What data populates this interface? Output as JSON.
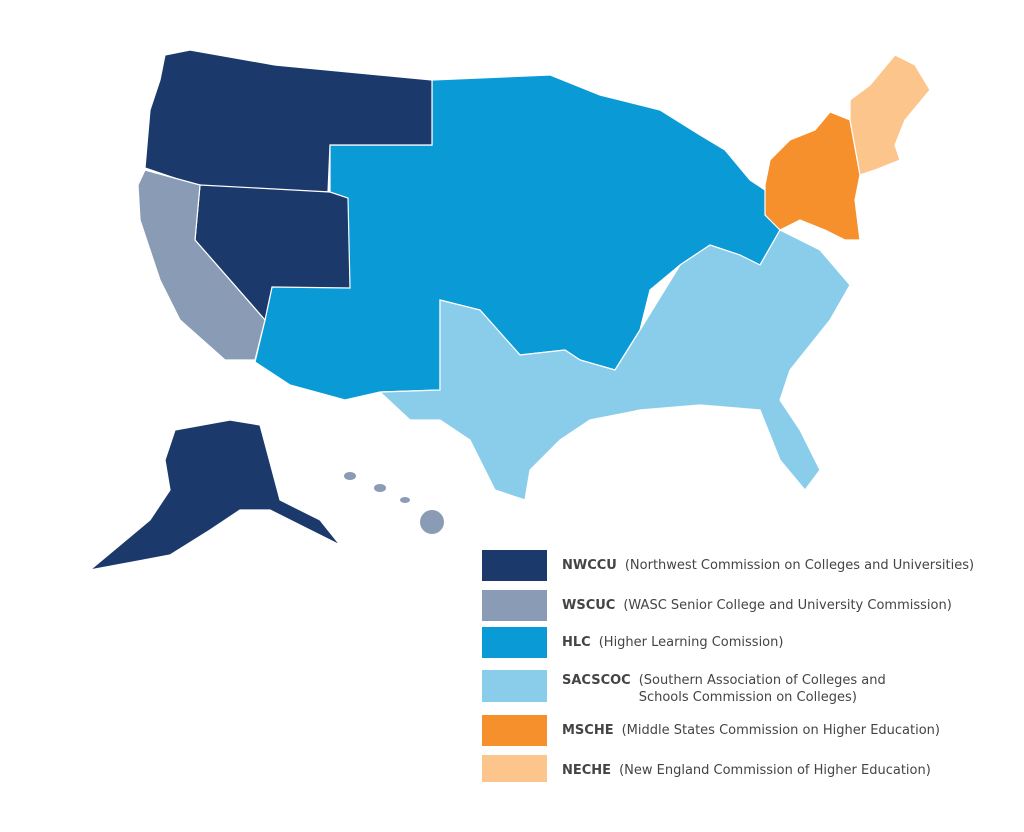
{
  "legend": [
    {
      "abbr": "NWCCU",
      "lines": [
        "(Northwest Commission on Colleges and Universities)"
      ],
      "color": "#1b3a6b"
    },
    {
      "abbr": "WSCUC",
      "lines": [
        "(WASC Senior College and University Commission)"
      ],
      "color": "#8a9cb5"
    },
    {
      "abbr": "HLC",
      "lines": [
        "(Higher Learning Comission)"
      ],
      "color": "#0a9ad6"
    },
    {
      "abbr": "SACSCOC",
      "lines": [
        "(Southern Association of Colleges and",
        "Schools Commission on Colleges)"
      ],
      "color": "#89cdeb"
    },
    {
      "abbr": "MSCHE",
      "lines": [
        "(Middle States Commission on Higher Education)"
      ],
      "color": "#f5902c"
    },
    {
      "abbr": "NECHE",
      "lines": [
        "(New England Commission of Higher Education)"
      ],
      "color": "#fbc58b"
    }
  ]
}
